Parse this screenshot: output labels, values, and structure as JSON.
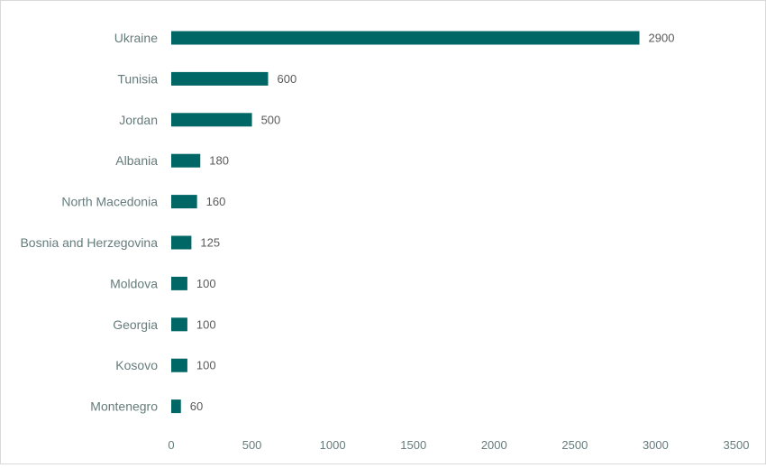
{
  "chart_data": {
    "type": "bar",
    "orientation": "horizontal",
    "categories": [
      "Ukraine",
      "Tunisia",
      "Jordan",
      "Albania",
      "North Macedonia",
      "Bosnia and Herzegovina",
      "Moldova",
      "Georgia",
      "Kosovo",
      "Montenegro"
    ],
    "values": [
      2900,
      600,
      500,
      180,
      160,
      125,
      100,
      100,
      100,
      60
    ],
    "data_labels": [
      "2900",
      "600",
      "500",
      "180",
      "160",
      "125",
      "100",
      "100",
      "100",
      "60"
    ],
    "x_ticks": [
      "0",
      "500",
      "1000",
      "1500",
      "2000",
      "2500",
      "3000",
      "3500"
    ],
    "xlim": [
      0,
      3500
    ],
    "title": "",
    "xlabel": "",
    "ylabel": "",
    "grid": false,
    "legend": "none",
    "colors": {
      "bar": "#006666",
      "category_label": "#667b7b",
      "data_label": "#5a5a5a",
      "tick_label": "#667b7b",
      "border": "#d9d9d9"
    }
  }
}
